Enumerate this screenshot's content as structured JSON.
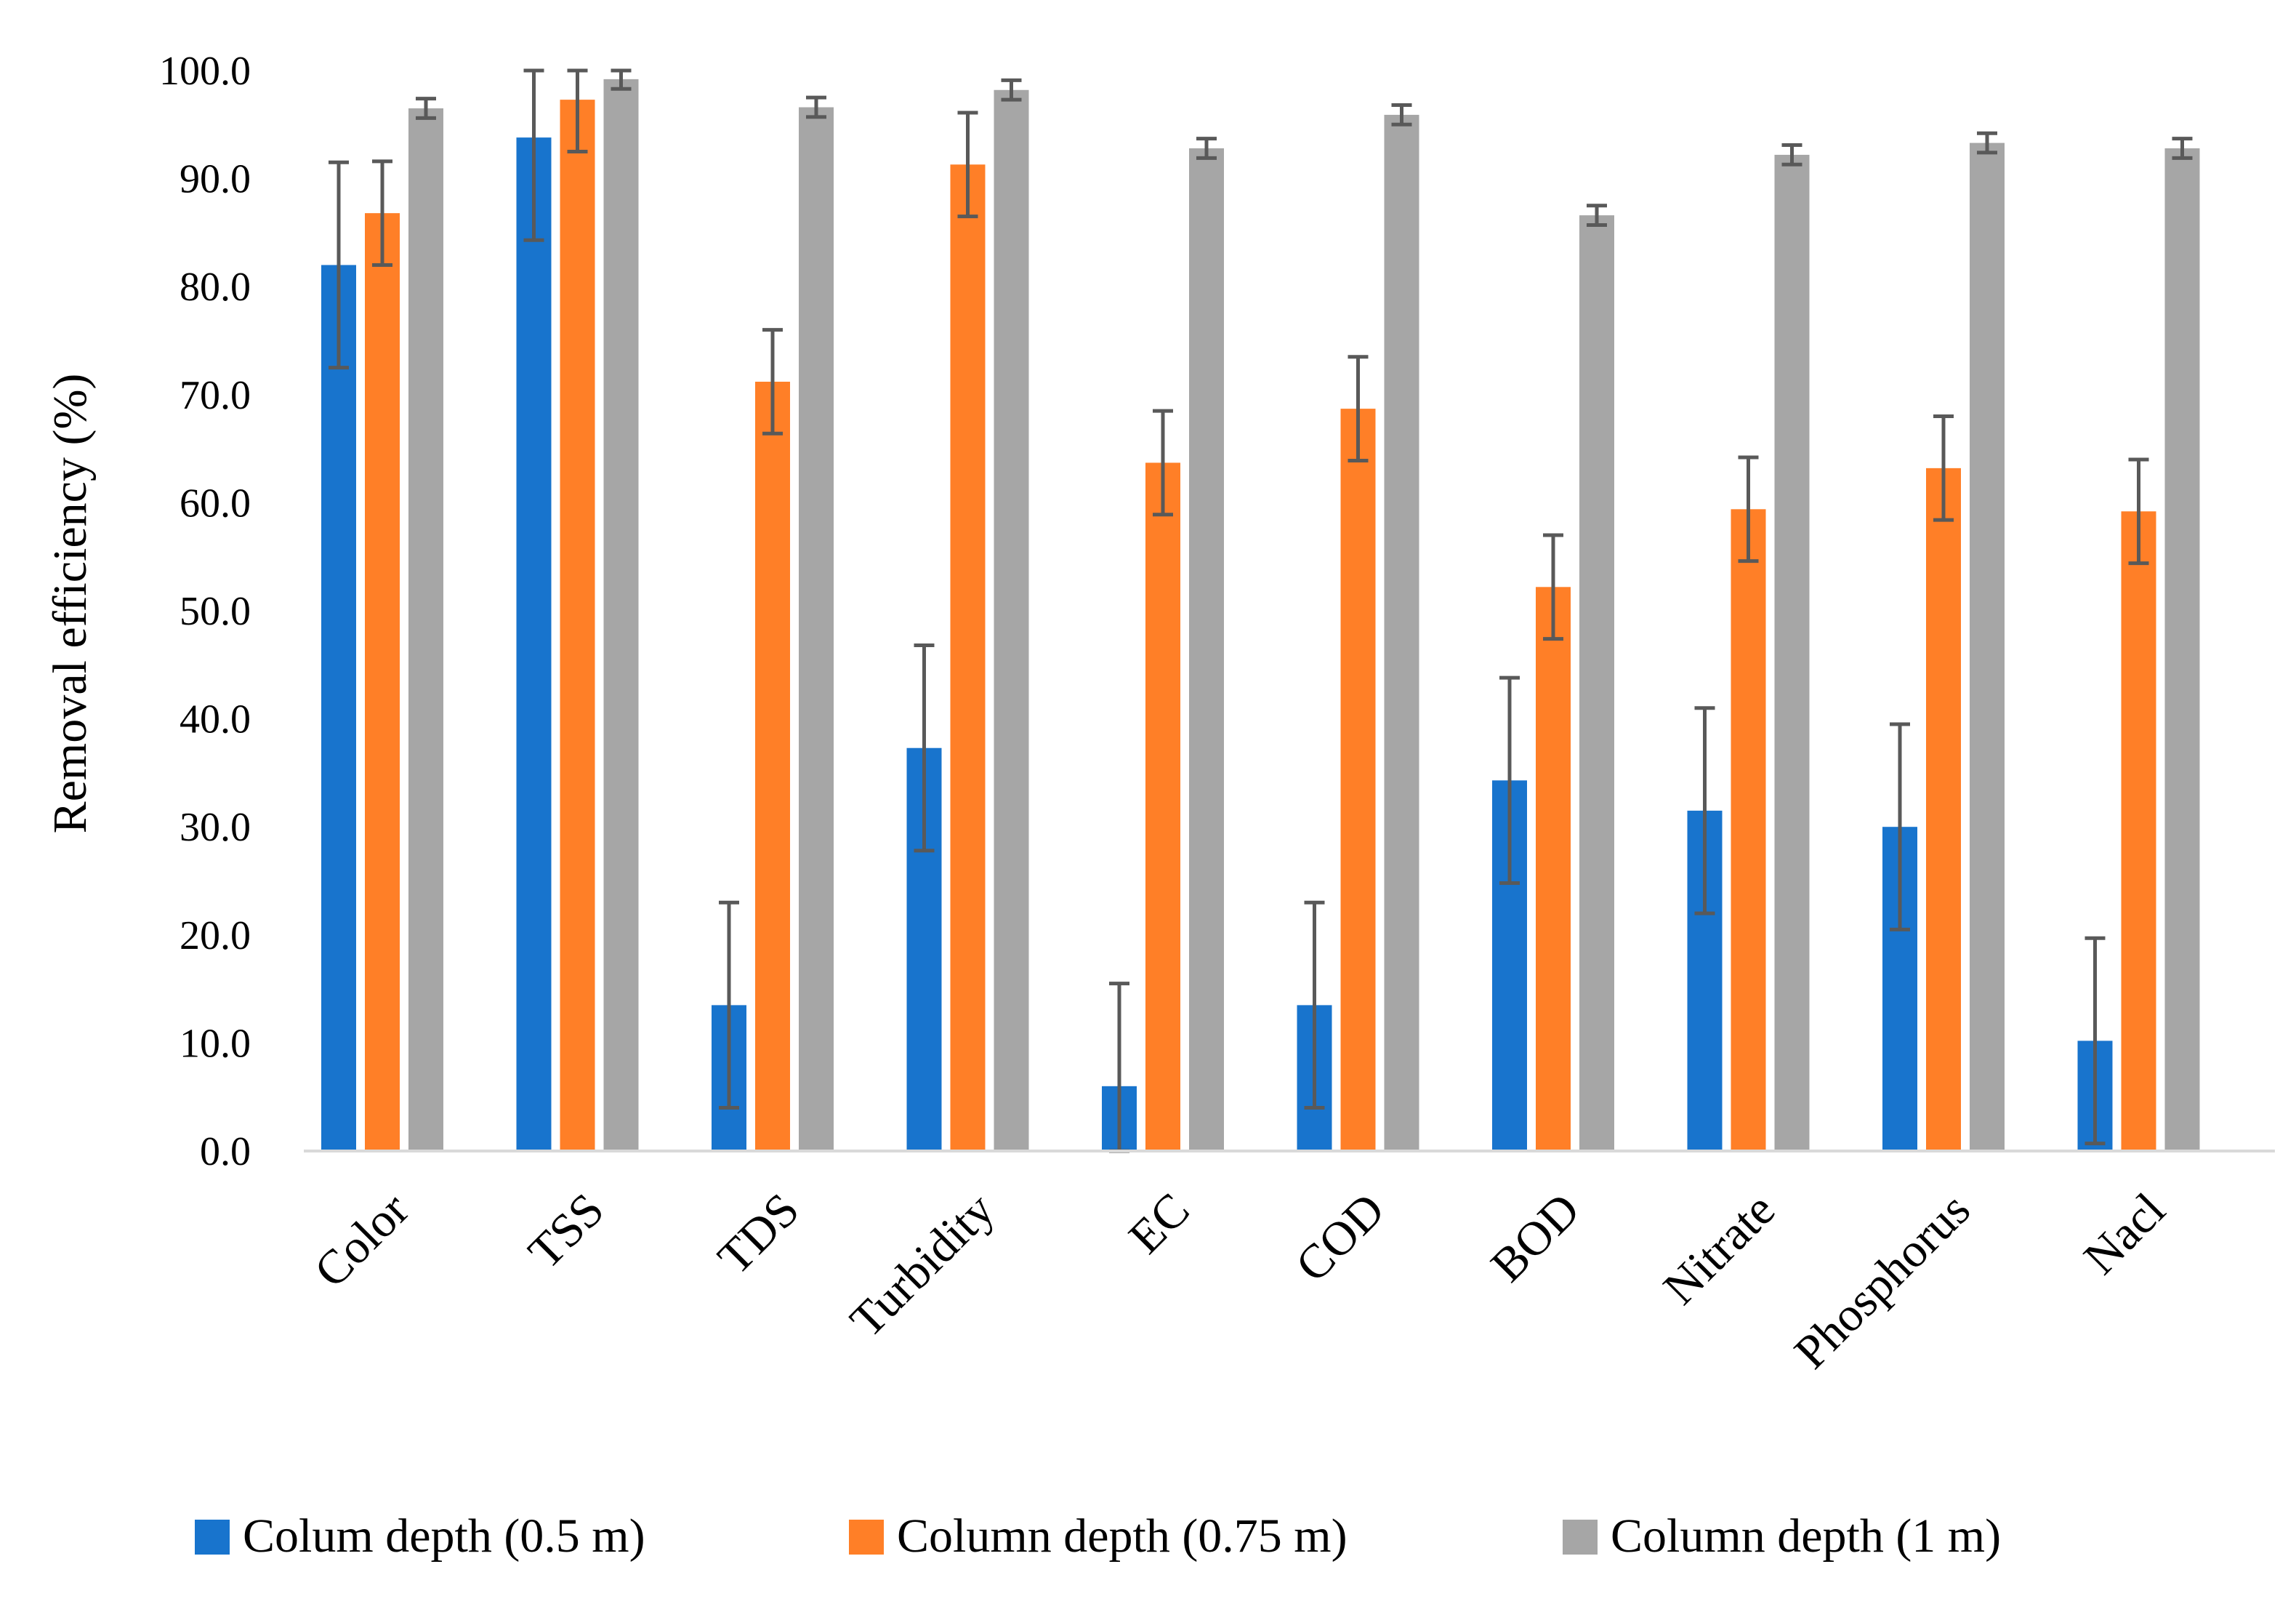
{
  "chart_data": {
    "type": "bar",
    "title": "",
    "xlabel": "",
    "ylabel": "Removal efficiency (%)",
    "ylim": [
      0,
      100
    ],
    "ytick_step": 10,
    "ytick_labels": [
      "0.0",
      "10.0",
      "20.0",
      "30.0",
      "40.0",
      "50.0",
      "60.0",
      "70.0",
      "80.0",
      "90.0",
      "100.0"
    ],
    "grid": false,
    "legend_position": "bottom",
    "categories": [
      "Color",
      "TSS",
      "TDS",
      "Turbidity",
      "EC",
      "COD",
      "BOD",
      "Nitrate",
      "Phosphorus",
      "Nacl"
    ],
    "series": [
      {
        "name": "Colum depth (0.5 m)",
        "color": "#1874CD",
        "values": [
          82.0,
          93.8,
          13.5,
          37.3,
          6.0,
          13.5,
          34.3,
          31.5,
          30.0,
          10.2
        ],
        "errors": [
          9.5,
          9.5,
          9.5,
          9.5,
          9.5,
          9.5,
          9.5,
          9.5,
          9.5,
          9.5
        ]
      },
      {
        "name": "Column depth (0.75 m)",
        "color": "#FF7F27",
        "values": [
          86.8,
          97.3,
          71.2,
          91.3,
          63.7,
          68.7,
          52.2,
          59.4,
          63.2,
          59.2
        ],
        "errors": [
          4.8,
          4.8,
          4.8,
          4.8,
          4.8,
          4.8,
          4.8,
          4.8,
          4.8,
          4.8
        ]
      },
      {
        "name": "Column depth (1 m)",
        "color": "#A6A6A6",
        "values": [
          96.5,
          99.2,
          96.6,
          98.2,
          92.8,
          95.9,
          86.6,
          92.2,
          93.3,
          92.8
        ],
        "errors": [
          0.9,
          0.9,
          0.9,
          0.9,
          0.9,
          0.9,
          0.9,
          0.9,
          0.9,
          0.9
        ]
      }
    ]
  }
}
